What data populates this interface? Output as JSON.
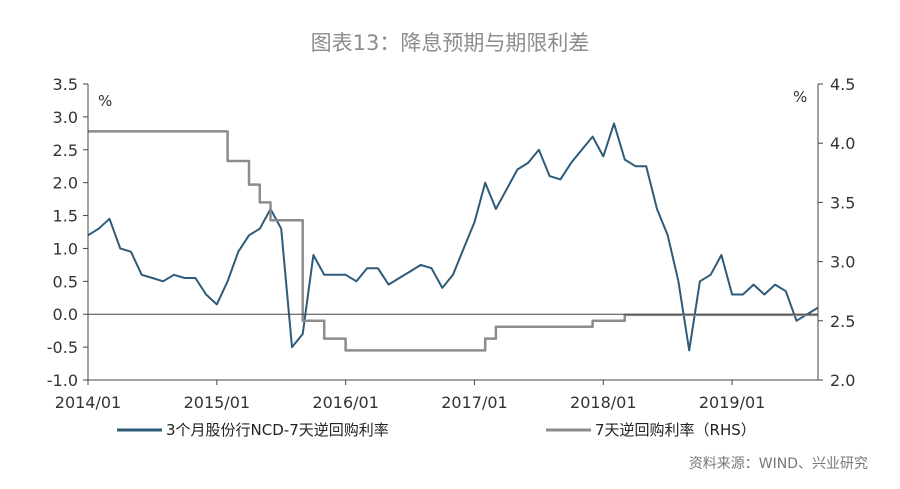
{
  "chart_data": {
    "type": "line",
    "title": "图表13：降息预期与期限利差",
    "left_unit": "%",
    "right_unit": "%",
    "ylim_left": [
      -1.0,
      3.5
    ],
    "ylim_right": [
      2.0,
      4.5
    ],
    "yticks_left": [
      "3.5",
      "3.0",
      "2.5",
      "2.0",
      "1.5",
      "1.0",
      "0.5",
      "0.0",
      "-0.5",
      "-1.0"
    ],
    "yticks_right": [
      "4.5",
      "4.0",
      "3.5",
      "3.0",
      "2.5",
      "2.0"
    ],
    "xticks": [
      "2014/01",
      "2015/01",
      "2016/01",
      "2017/01",
      "2018/01",
      "2019/01"
    ],
    "xrange": [
      "2014-01",
      "2019-09"
    ],
    "grid": false,
    "legend_position": "bottom",
    "series": [
      {
        "name": "3个月股份行NCD-7天逆回购利率",
        "axis": "left",
        "color": "#2e5b7a",
        "points": [
          [
            "2014-01",
            1.2
          ],
          [
            "2014-02",
            1.3
          ],
          [
            "2014-03",
            1.45
          ],
          [
            "2014-04",
            1.0
          ],
          [
            "2014-05",
            0.95
          ],
          [
            "2014-06",
            0.6
          ],
          [
            "2014-07",
            0.55
          ],
          [
            "2014-08",
            0.5
          ],
          [
            "2014-09",
            0.6
          ],
          [
            "2014-10",
            0.55
          ],
          [
            "2014-11",
            0.55
          ],
          [
            "2014-12",
            0.3
          ],
          [
            "2015-01",
            0.15
          ],
          [
            "2015-02",
            0.5
          ],
          [
            "2015-03",
            0.95
          ],
          [
            "2015-04",
            1.2
          ],
          [
            "2015-05",
            1.3
          ],
          [
            "2015-06",
            1.6
          ],
          [
            "2015-07",
            1.3
          ],
          [
            "2015-08",
            -0.5
          ],
          [
            "2015-09",
            -0.3
          ],
          [
            "2015-10",
            0.9
          ],
          [
            "2015-11",
            0.6
          ],
          [
            "2015-12",
            0.6
          ],
          [
            "2016-01",
            0.6
          ],
          [
            "2016-02",
            0.5
          ],
          [
            "2016-03",
            0.7
          ],
          [
            "2016-04",
            0.7
          ],
          [
            "2016-05",
            0.45
          ],
          [
            "2016-06",
            0.55
          ],
          [
            "2016-07",
            0.65
          ],
          [
            "2016-08",
            0.75
          ],
          [
            "2016-09",
            0.7
          ],
          [
            "2016-10",
            0.4
          ],
          [
            "2016-11",
            0.6
          ],
          [
            "2016-12",
            1.0
          ],
          [
            "2017-01",
            1.4
          ],
          [
            "2017-02",
            2.0
          ],
          [
            "2017-03",
            1.6
          ],
          [
            "2017-04",
            1.9
          ],
          [
            "2017-05",
            2.2
          ],
          [
            "2017-06",
            2.3
          ],
          [
            "2017-07",
            2.5
          ],
          [
            "2017-08",
            2.1
          ],
          [
            "2017-09",
            2.05
          ],
          [
            "2017-10",
            2.3
          ],
          [
            "2017-11",
            2.5
          ],
          [
            "2017-12",
            2.7
          ],
          [
            "2018-01",
            2.4
          ],
          [
            "2018-02",
            2.9
          ],
          [
            "2018-03",
            2.35
          ],
          [
            "2018-04",
            2.25
          ],
          [
            "2018-05",
            2.25
          ],
          [
            "2018-06",
            1.6
          ],
          [
            "2018-07",
            1.2
          ],
          [
            "2018-08",
            0.5
          ],
          [
            "2018-09",
            -0.55
          ],
          [
            "2018-10",
            0.5
          ],
          [
            "2018-11",
            0.6
          ],
          [
            "2018-12",
            0.9
          ],
          [
            "2019-01",
            0.3
          ],
          [
            "2019-02",
            0.3
          ],
          [
            "2019-03",
            0.45
          ],
          [
            "2019-04",
            0.3
          ],
          [
            "2019-05",
            0.45
          ],
          [
            "2019-06",
            0.35
          ],
          [
            "2019-07",
            -0.1
          ],
          [
            "2019-08",
            0.0
          ],
          [
            "2019-09",
            0.1
          ]
        ]
      },
      {
        "name": "7天逆回购利率（RHS）",
        "axis": "right",
        "color": "#8c8c8c",
        "points": [
          [
            "2014-01",
            4.1
          ],
          [
            "2015-01",
            4.1
          ],
          [
            "2015-02",
            3.85
          ],
          [
            "2015-04",
            3.65
          ],
          [
            "2015-05",
            3.5
          ],
          [
            "2015-06",
            3.35
          ],
          [
            "2015-09",
            2.5
          ],
          [
            "2015-11",
            2.35
          ],
          [
            "2016-01",
            2.25
          ],
          [
            "2017-01",
            2.25
          ],
          [
            "2017-02",
            2.35
          ],
          [
            "2017-03",
            2.45
          ],
          [
            "2017-12",
            2.5
          ],
          [
            "2018-03",
            2.55
          ],
          [
            "2019-09",
            2.55
          ]
        ]
      }
    ]
  },
  "legend": {
    "items": [
      {
        "label": "3个月股份行NCD-7天逆回购利率",
        "color": "#2e5b7a"
      },
      {
        "label": "7天逆回购利率（RHS）",
        "color": "#8c8c8c"
      }
    ]
  },
  "source": "资料来源：WIND、兴业研究"
}
